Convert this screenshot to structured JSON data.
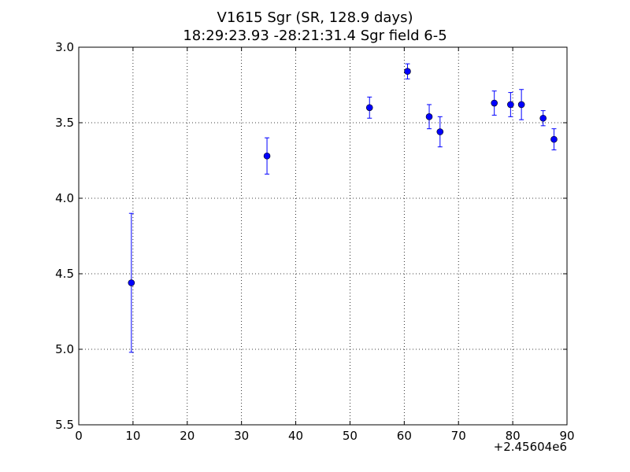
{
  "chart_data": {
    "type": "scatter",
    "title": "V1615 Sgr  (SR, 128.9 days)",
    "subtitle": "18:29:23.93 -28:21:31.4 Sgr field 6-5",
    "x_offset_label": "+2.45604e6",
    "xlim": [
      0,
      90
    ],
    "ylim": [
      3.0,
      5.5
    ],
    "y_inverted": true,
    "grid": true,
    "grid_style": "dotted",
    "x_ticks": [
      "0",
      "10",
      "20",
      "30",
      "40",
      "50",
      "60",
      "70",
      "80",
      "90"
    ],
    "y_ticks": [
      "3.0",
      "3.5",
      "4.0",
      "4.5",
      "5.0",
      "5.5"
    ],
    "marker_color": "#0000ff",
    "points": [
      {
        "x": 9.7,
        "y": 4.56,
        "err": 0.46
      },
      {
        "x": 34.7,
        "y": 3.72,
        "err": 0.12
      },
      {
        "x": 53.6,
        "y": 3.4,
        "err": 0.07
      },
      {
        "x": 60.6,
        "y": 3.16,
        "err": 0.05
      },
      {
        "x": 64.6,
        "y": 3.46,
        "err": 0.08
      },
      {
        "x": 66.6,
        "y": 3.56,
        "err": 0.1
      },
      {
        "x": 76.6,
        "y": 3.37,
        "err": 0.08
      },
      {
        "x": 79.6,
        "y": 3.38,
        "err": 0.08
      },
      {
        "x": 81.6,
        "y": 3.38,
        "err": 0.1
      },
      {
        "x": 85.6,
        "y": 3.47,
        "err": 0.05
      },
      {
        "x": 87.6,
        "y": 3.61,
        "err": 0.07
      }
    ]
  }
}
